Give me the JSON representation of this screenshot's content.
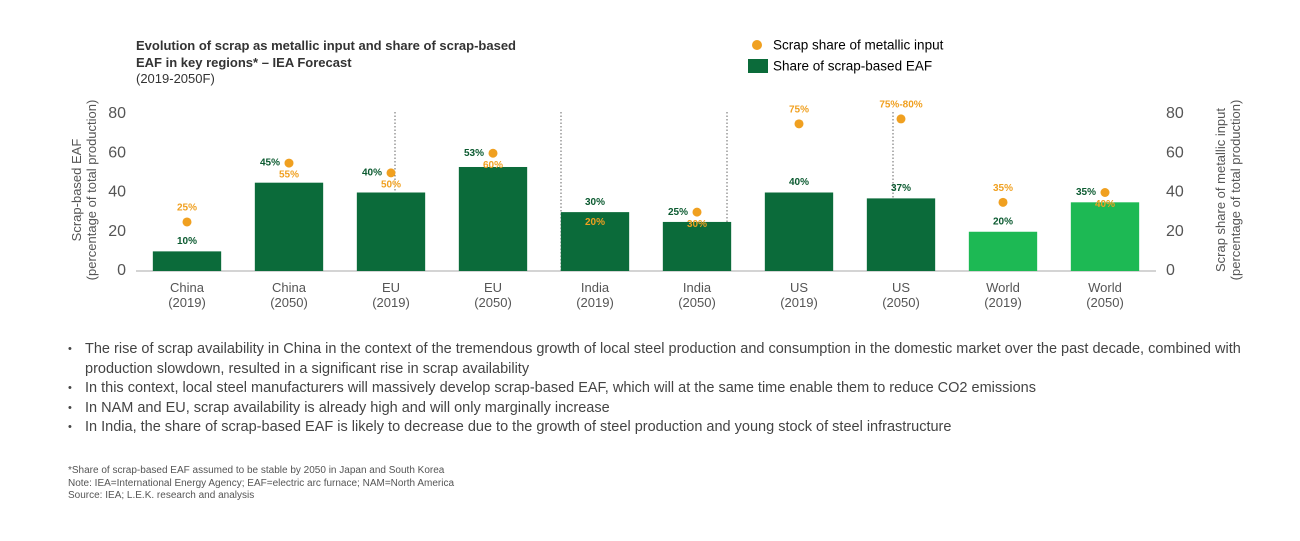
{
  "chart_data": {
    "type": "bar",
    "title": "Evolution of scrap as metallic input and share of scrap-based EAF in key regions* – IEA Forecast",
    "subtitle": "(2019-2050F)",
    "y_label": "Scrap-based EAF\n(percentage of total production)",
    "y2_label": "Scrap share of metallic input\n(percentage of total production)",
    "categories": [
      "China\n(2019)",
      "China\n(2050)",
      "EU\n(2019)",
      "EU\n(2050)",
      "India\n(2019)",
      "India\n(2050)",
      "US\n(2019)",
      "US\n(2050)",
      "World\n(2019)",
      "World\n(2050)"
    ],
    "ylim": [
      0,
      80
    ],
    "yticks": [
      0,
      20,
      40,
      60,
      80
    ],
    "y2lim": [
      0,
      80
    ],
    "y2ticks": [
      0,
      20,
      40,
      60,
      80
    ],
    "series": [
      {
        "name": "Scrap share of metallic input",
        "type": "scatter",
        "axis": "y2",
        "color": "#f0a020",
        "values": [
          25,
          55,
          50,
          60,
          20,
          30,
          75,
          77.5,
          35,
          40
        ],
        "value_labels": [
          "25%",
          "55%",
          "50%",
          "60%",
          "20%",
          "30%",
          "75%",
          "75%-80%",
          "35%",
          "40%"
        ]
      },
      {
        "name": "Share of scrap-based EAF",
        "type": "bar",
        "color": "#0b6b3a",
        "colors": [
          "#0b6b3a",
          "#0b6b3a",
          "#0b6b3a",
          "#0b6b3a",
          "#0b6b3a",
          "#0b6b3a",
          "#0b6b3a",
          "#0b6b3a",
          "#1db954",
          "#1db954"
        ],
        "values": [
          10,
          45,
          40,
          53,
          30,
          25,
          40,
          37,
          20,
          35
        ],
        "value_labels": [
          "10%",
          "45%",
          "40%",
          "53%",
          "30%",
          "25%",
          "40%",
          "37%",
          "20%",
          "35%"
        ]
      }
    ]
  },
  "bullets": [
    "The rise of scrap availability in China in the context of the tremendous growth of local steel production and consumption in the domestic market over the past decade, combined with production slowdown, resulted in a significant rise in scrap availability",
    "In this context, local steel manufacturers will massively develop scrap-based EAF, which will at the same time enable them to reduce CO2 emissions",
    "In NAM and EU, scrap availability is already high and will only marginally increase",
    "In India, the share of scrap-based EAF is likely to decrease due to the growth of steel production and young stock of steel infrastructure"
  ],
  "footnotes": [
    "*Share of scrap-based EAF assumed to be stable by 2050 in Japan and South Korea",
    "Note: IEA=International Energy Agency; EAF=electric arc furnace; NAM=North America",
    "Source: IEA; L.E.K. research and analysis"
  ]
}
